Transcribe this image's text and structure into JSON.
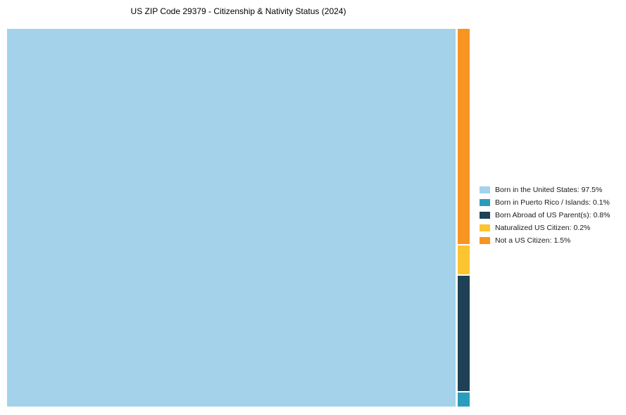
{
  "chart_data": {
    "type": "treemap",
    "title": "US ZIP Code 29379 - Citizenship & Nativity Status (2024)",
    "categories": [
      "Born in the United States",
      "Born in Puerto Rico / Islands",
      "Born Abroad of US Parent(s)",
      "Naturalized US Citizen",
      "Not a US Citizen"
    ],
    "values": [
      97.5,
      0.1,
      0.8,
      0.2,
      1.5
    ],
    "unit": "%",
    "colors": [
      "#a3d2ea",
      "#2a9dbc",
      "#1e4155",
      "#fcc430",
      "#f89522"
    ],
    "legend_position": "right",
    "legend_labels": [
      "Born in the United States: 97.5%",
      "Born in Puerto Rico / Islands: 0.1%",
      "Born Abroad of US Parent(s): 0.8%",
      "Naturalized US Citizen: 0.2%",
      "Not a US Citizen: 1.5%"
    ],
    "layout": "main-block-left-with-stacked-minor-column-right",
    "column_order_top_to_bottom": [
      "Not a US Citizen",
      "Naturalized US Citizen",
      "Born Abroad of US Parent(s)",
      "Born in Puerto Rico / Islands"
    ]
  }
}
